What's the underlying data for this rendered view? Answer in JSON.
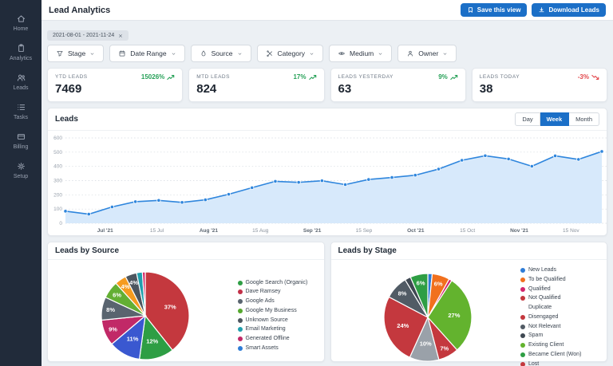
{
  "header": {
    "title": "Lead Analytics",
    "save_label": "Save this view",
    "download_label": "Download Leads"
  },
  "sidebar": {
    "items": [
      {
        "icon": "home-icon",
        "label": "Home"
      },
      {
        "icon": "analytics-icon",
        "label": "Analytics"
      },
      {
        "icon": "leads-icon",
        "label": "Leads"
      },
      {
        "icon": "tasks-icon",
        "label": "Tasks"
      },
      {
        "icon": "billing-icon",
        "label": "Billing"
      },
      {
        "icon": "setup-icon",
        "label": "Setup"
      }
    ]
  },
  "filter_bar": {
    "date_chip": "2021-08-01 - 2021-11-24",
    "filters": [
      {
        "icon": "stage-icon",
        "label": "Stage"
      },
      {
        "icon": "calendar-icon",
        "label": "Date Range"
      },
      {
        "icon": "source-icon",
        "label": "Source"
      },
      {
        "icon": "category-icon",
        "label": "Category"
      },
      {
        "icon": "medium-icon",
        "label": "Medium"
      },
      {
        "icon": "owner-icon",
        "label": "Owner"
      }
    ]
  },
  "kpis": [
    {
      "label": "YTD LEADS",
      "value": "7469",
      "delta": "15026%",
      "trend": "up"
    },
    {
      "label": "MTD LEADS",
      "value": "824",
      "delta": "17%",
      "trend": "up"
    },
    {
      "label": "LEADS YESTERDAY",
      "value": "63",
      "delta": "9%",
      "trend": "up"
    },
    {
      "label": "LEADS TODAY",
      "value": "38",
      "delta": "-3%",
      "trend": "down"
    }
  ],
  "colors": {
    "accent_blue": "#1b6fc7",
    "positive_green": "#27a158",
    "negative_red": "#e2484d",
    "line": "#2f86dd",
    "area_fill": "#d7e9fb"
  },
  "chart_data": [
    {
      "type": "area",
      "title": "Leads",
      "toggles": [
        "Day",
        "Week",
        "Month"
      ],
      "active_toggle": "Week",
      "x_tick_labels": [
        "Jul '21",
        "15 Jul",
        "Aug '21",
        "15 Aug",
        "Sep '21",
        "15 Sep",
        "Oct '21",
        "15 Oct",
        "Nov '21",
        "15 Nov"
      ],
      "values": [
        85,
        64,
        115,
        152,
        161,
        147,
        165,
        204,
        250,
        295,
        288,
        299,
        272,
        308,
        322,
        338,
        381,
        443,
        475,
        452,
        401,
        474,
        449,
        505
      ],
      "ylim": [
        0,
        600
      ],
      "y_ticks": [
        0,
        100,
        200,
        300,
        400,
        500,
        600
      ],
      "grid": "horizontal-dotted",
      "legend_position": "none"
    },
    {
      "type": "pie",
      "title": "Leads by Source",
      "slices": [
        {
          "pct": 37,
          "color": "#c4383e",
          "label": "Dave Ramsey"
        },
        {
          "pct": 12,
          "color": "#2e9e44",
          "label": "Google Search (Organic)"
        },
        {
          "pct": 11,
          "color": "#3a58d0",
          "label": "Smart Assets"
        },
        {
          "pct": 9,
          "color": "#c12967",
          "label": "Generated Offline"
        },
        {
          "pct": 8,
          "color": "#59646f",
          "label": "Google Ads"
        },
        {
          "pct": 6,
          "color": "#63af33",
          "label": "Google My Business"
        },
        {
          "pct": 4,
          "color": "#f59b1f"
        },
        {
          "pct": 4,
          "color": "#4d565f",
          "label": "Unknown Source"
        },
        {
          "pct": 2,
          "color": "#1f9fad",
          "label": "Email Marketing"
        },
        {
          "pct": 1,
          "color": "#d62a69"
        }
      ],
      "legend": [
        {
          "label": "Google Search (Organic)",
          "color": "#2e9e44"
        },
        {
          "label": "Dave Ramsey",
          "color": "#c23048"
        },
        {
          "label": "Google Ads",
          "color": "#59646f"
        },
        {
          "label": "Google My Business",
          "color": "#55a82e"
        },
        {
          "label": "Unknown Source",
          "color": "#4d565f"
        },
        {
          "label": "Email Marketing",
          "color": "#1f9fad"
        },
        {
          "label": "Generated Offline",
          "color": "#c12967"
        },
        {
          "label": "Smart Assets",
          "color": "#2e7cd6"
        }
      ]
    },
    {
      "type": "pie",
      "title": "Leads by Stage",
      "slices": [
        {
          "pct": 1.5,
          "color": "#2e7cd6",
          "label": "New Leads"
        },
        {
          "pct": 6,
          "color": "#f1701e",
          "label": "To be Qualified"
        },
        {
          "pct": 1,
          "color": "#d2256d",
          "label": "Qualified"
        },
        {
          "pct": 27,
          "color": "#63b32e",
          "label": "Existing Client"
        },
        {
          "pct": 7,
          "color": "#c4383e"
        },
        {
          "pct": 10,
          "color": "#9aa1a9"
        },
        {
          "pct": 24,
          "color": "#c4383e"
        },
        {
          "pct": 8,
          "color": "#515b65",
          "label": "Not Relevant"
        },
        {
          "pct": 2,
          "color": "#3f4852",
          "label": "Spam"
        },
        {
          "pct": 6,
          "color": "#2e9e44",
          "label": "Became Client (Won)"
        }
      ],
      "legend": [
        {
          "label": "New Leads",
          "color": "#2e7cd6"
        },
        {
          "label": "To be Qualified",
          "color": "#f1701e"
        },
        {
          "label": "Qualified",
          "color": "#d2256d"
        },
        {
          "label": "Not Qualified",
          "color": "#c4383e"
        },
        {
          "label": "Duplicate",
          "color": null
        },
        {
          "label": "Disengaged",
          "color": "#c4383e"
        },
        {
          "label": "Not Relevant",
          "color": "#515b65"
        },
        {
          "label": "Spam",
          "color": "#3f4852"
        },
        {
          "label": "Existing Client",
          "color": "#63b32e"
        },
        {
          "label": "Became Client (Won)",
          "color": "#2e9e44"
        },
        {
          "label": "Lost",
          "color": "#c4383e"
        }
      ]
    }
  ]
}
